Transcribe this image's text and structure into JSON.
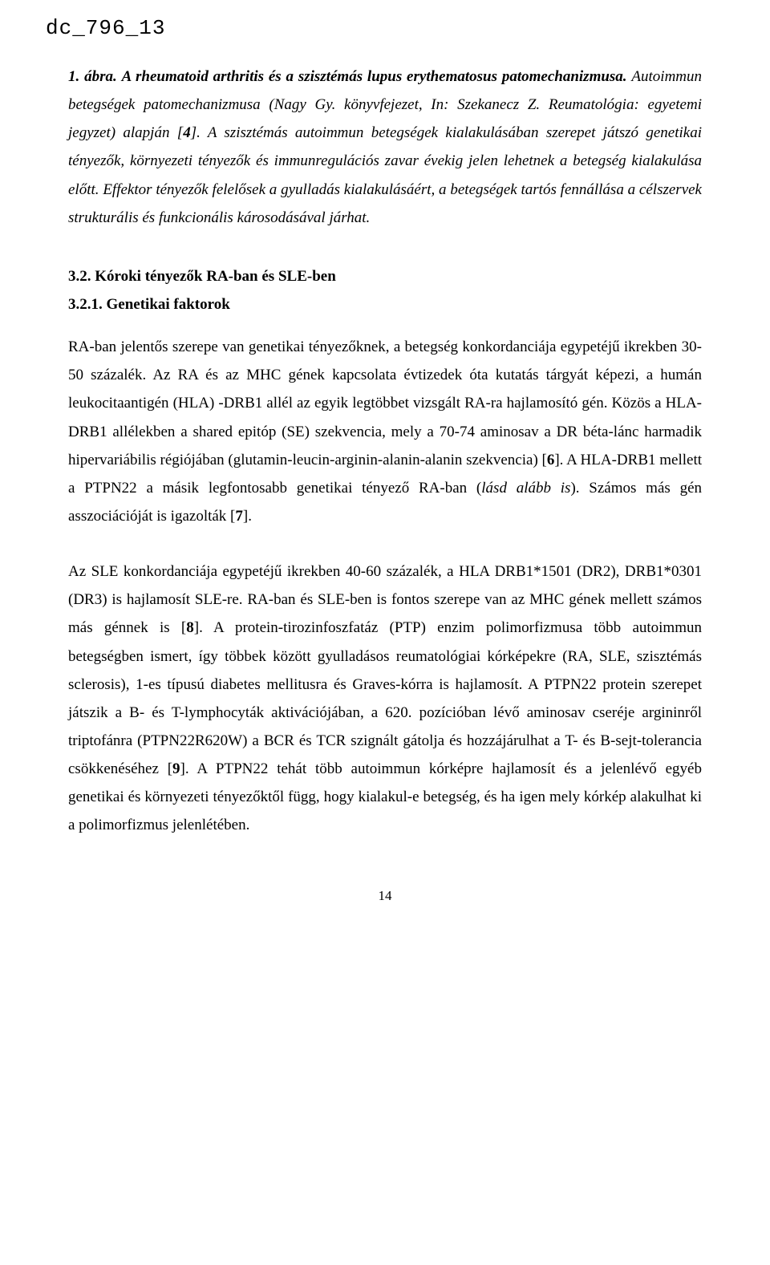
{
  "docId": "dc_796_13",
  "caption": {
    "leadBold": "1. ábra.",
    "titleItalic": "A rheumatoid arthritis és a szisztémás lupus erythematosus patomechanizmusa.",
    "sent1": "Autoimmun betegségek patomechanizmusa (Nagy Gy. könyvfejezet, In: Szekanecz Z. Reumatológia: egyetemi jegyzet) alapján [",
    "ref4": "4",
    "sent1b": "]. A szisztémás autoimmun betegségek kialakulásában szerepet játszó genetikai tényezők, környezeti tényezők és immunregulációs zavar évekig jelen lehetnek a betegség kialakulása előtt. Effektor tényezők felelősek a gyulladás kialakulásáért, a betegségek tartós fennállása a célszervek strukturális és funkcionális károsodásával járhat."
  },
  "headings": {
    "h32": "3.2. Kóroki tényezők RA-ban és SLE-ben",
    "h321": "3.2.1. Genetikai faktorok"
  },
  "para1": {
    "s1": "RA-ban jelentős szerepe van genetikai tényezőknek, a betegség konkordanciája egypetéjű ikrekben 30-50 százalék. Az RA és az MHC gének kapcsolata évtizedek óta kutatás tárgyát képezi, a humán leukocitaantigén (HLA) -DRB1 allél az egyik legtöbbet vizsgált RA-ra hajlamosító gén. Közös a HLA-DRB1 allélekben a shared epitóp (SE) szekvencia, mely a 70-74 aminosav a DR béta-lánc harmadik hipervariábilis régiójában (glutamin-leucin-arginin-alanin-alanin szekvencia) [",
    "ref6": "6",
    "s2": "]. A HLA-DRB1 mellett a PTPN22 a másik legfontosabb genetikai tényező RA-ban (",
    "ital": "lásd alább is",
    "s3": "). Számos más gén asszociációját is igazolták [",
    "ref7": "7",
    "s4": "]."
  },
  "para2": {
    "s1": "Az SLE konkordanciája egypetéjű ikrekben 40-60 százalék, a HLA DRB1*1501 (DR2), DRB1*0301 (DR3) is hajlamosít SLE-re. RA-ban és SLE-ben is fontos szerepe van az MHC gének mellett számos más génnek is [",
    "ref8": "8",
    "s2": "]. A protein-tirozinfoszfatáz (PTP) enzim polimorfizmusa több autoimmun betegségben ismert, így többek között gyulladásos reumatológiai kórképekre (RA, SLE, szisztémás sclerosis), 1-es típusú diabetes mellitusra és Graves-kórra is hajlamosít. A PTPN22 protein szerepet játszik a B- és T-lymphocyták aktivációjában, a 620. pozícióban lévő aminosav cseréje argininről triptofánra (PTPN22R620W) a BCR és TCR szignált gátolja és hozzájárulhat a T- és B-sejt-tolerancia csökkenéséhez [",
    "ref9": "9",
    "s3": "]. A PTPN22 tehát több autoimmun kórképre hajlamosít és a jelenlévő egyéb genetikai és környezeti tényezőktől függ, hogy kialakul-e betegség, és ha igen mely kórkép alakulhat ki a polimorfizmus jelenlétében."
  },
  "pageNumber": "14"
}
